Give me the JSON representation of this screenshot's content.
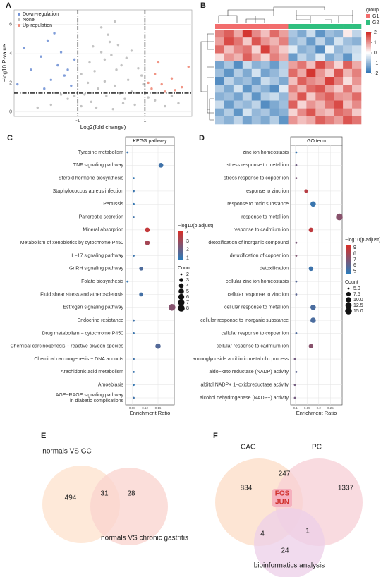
{
  "chart_data": [
    {
      "type": "scatter",
      "panel": "A",
      "xlabel": "Log2(fold change)",
      "ylabel": "−log10 P-value",
      "xlim": [
        -2.9,
        2.4
      ],
      "ylim": [
        -0.3,
        7
      ],
      "xticks": [
        -1,
        1
      ],
      "yticks": [
        0,
        2,
        4,
        6
      ],
      "vlines": [
        -1,
        1
      ],
      "hline": 1.3,
      "grid": true,
      "legend": "top-left",
      "series": [
        {
          "name": "Down-regulation",
          "color": "#7393d6",
          "x": [
            -2.6,
            -2.1,
            -1.9,
            -1.6,
            -1.4,
            -2.4,
            -1.2,
            -1.8,
            -1.1,
            -2.8,
            -1.5,
            -1.3,
            -2.0,
            -1.7
          ],
          "y": [
            4.4,
            3.8,
            4.9,
            3.2,
            2.5,
            2.9,
            1.8,
            2.2,
            3.6,
            1.9,
            4.1,
            2.9,
            1.6,
            5.4
          ]
        },
        {
          "name": "None",
          "color": "#bdbdbd",
          "x": [
            -0.2,
            0.1,
            0.3,
            -0.5,
            0.6,
            -0.8,
            0.9,
            -0.3,
            0.2,
            -0.1,
            0.4,
            -0.6,
            0.7,
            -0.9,
            0.05,
            -0.4,
            0.5,
            -0.7,
            0.8,
            -0.2,
            0.15,
            -0.45,
            0.35,
            -0.15,
            0.25,
            1.3,
            -1.3,
            1.6,
            -1.8,
            1.1,
            -1.1,
            -2.2,
            2.0,
            0.0,
            -0.05,
            0.45,
            -0.65,
            0.6,
            -0.3,
            0.1,
            -0.9,
            0.95,
            -1.5,
            1.8,
            -0.55
          ],
          "y": [
            2.1,
            1.8,
            3.2,
            2.8,
            1.4,
            1.2,
            2.5,
            4.1,
            4.6,
            5.3,
            0.9,
            0.7,
            0.5,
            0.4,
            0.2,
            1.6,
            2.2,
            2.0,
            3.0,
            3.6,
            2.9,
            0.3,
            0.6,
            1.1,
            1.3,
            0.8,
            0.9,
            0.4,
            0.5,
            1.0,
            1.1,
            0.3,
            0.6,
            3.9,
            4.8,
            3.7,
            3.4,
            4.2,
            5.8,
            6.2,
            2.6,
            1.9,
            1.2,
            1.1,
            4.5
          ]
        },
        {
          "name": "Up-regulation",
          "color": "#f08a78",
          "x": [
            1.2,
            1.5,
            1.8,
            2.1,
            1.3,
            2.3,
            1.6,
            1.1,
            1.9,
            1.4
          ],
          "y": [
            1.6,
            1.9,
            2.3,
            1.7,
            2.6,
            3.1,
            1.4,
            2.0,
            1.5,
            3.4
          ]
        }
      ]
    },
    {
      "type": "heatmap",
      "panel": "B",
      "legend_title": "group",
      "groups": [
        {
          "name": "G1",
          "color": "#f26d6d"
        },
        {
          "name": "G2",
          "color": "#2fbf7f"
        }
      ],
      "column_groups": [
        0,
        0,
        0,
        0,
        0,
        0,
        0,
        0,
        1,
        1,
        1,
        1,
        1,
        1,
        1,
        1
      ],
      "clim": [
        -2,
        2
      ],
      "cticks": [
        2,
        1,
        0,
        -1,
        -2
      ],
      "color_low": "#2a71b3",
      "color_mid": "#ffffff",
      "color_high": "#d22b26",
      "values": [
        [
          1.2,
          1.5,
          0.8,
          1.9,
          1.1,
          0.6,
          1.4,
          0.9,
          -0.8,
          -1.2,
          -0.5,
          -1.5,
          -0.9,
          -1.1,
          0.2,
          -0.6
        ],
        [
          0.9,
          1.7,
          1.3,
          0.5,
          1.6,
          1.0,
          0.7,
          1.2,
          -1.0,
          -0.7,
          -1.4,
          -0.6,
          -1.3,
          -0.4,
          -0.9,
          -1.1
        ],
        [
          1.4,
          0.6,
          1.1,
          1.3,
          0.4,
          1.8,
          1.0,
          0.5,
          -0.3,
          -1.1,
          -0.9,
          -1.6,
          -0.2,
          -1.0,
          -0.7,
          -0.5
        ],
        [
          0.3,
          1.0,
          0.7,
          1.5,
          0.9,
          0.4,
          1.2,
          0.8,
          -1.4,
          -0.6,
          -1.0,
          -0.3,
          -1.2,
          -0.8,
          -1.5,
          -0.4
        ],
        [
          -1.3,
          -0.8,
          -1.6,
          -0.5,
          -1.1,
          -0.9,
          -1.4,
          -0.7,
          0.9,
          1.3,
          0.6,
          1.7,
          1.1,
          0.4,
          1.5,
          0.8
        ],
        [
          -0.9,
          -1.5,
          -0.7,
          -1.2,
          -0.4,
          -1.3,
          -1.0,
          -0.6,
          1.4,
          0.8,
          1.9,
          1.0,
          0.5,
          1.6,
          0.7,
          1.2
        ],
        [
          -1.6,
          -0.6,
          -1.1,
          -0.9,
          -1.4,
          -0.5,
          -0.8,
          -1.2,
          0.6,
          1.5,
          1.1,
          0.9,
          1.8,
          1.2,
          0.3,
          1.0
        ],
        [
          -0.7,
          -1.2,
          -0.4,
          -1.5,
          -0.8,
          -1.1,
          -1.6,
          -0.3,
          1.2,
          0.7,
          1.4,
          1.6,
          0.9,
          0.5,
          1.3,
          0.6
        ],
        [
          -1.1,
          -0.9,
          -1.3,
          -0.6,
          -1.5,
          -0.7,
          -0.5,
          -1.0,
          0.8,
          1.6,
          0.5,
          1.2,
          1.5,
          1.0,
          0.9,
          1.4
        ],
        [
          -0.5,
          -1.4,
          -0.8,
          -1.0,
          -0.6,
          -1.6,
          -1.2,
          -0.9,
          1.5,
          0.4,
          1.0,
          0.7,
          1.3,
          1.7,
          0.6,
          1.1
        ],
        [
          -1.2,
          -0.7,
          -1.5,
          -0.4,
          -1.0,
          -0.8,
          -1.3,
          -1.1,
          0.4,
          1.1,
          1.6,
          0.8,
          0.6,
          1.4,
          1.2,
          0.5
        ],
        [
          -0.8,
          -1.1,
          -0.6,
          -1.3,
          -0.9,
          -1.2,
          -0.7,
          -1.5,
          1.0,
          0.6,
          0.8,
          1.5,
          1.2,
          0.9,
          1.6,
          1.3
        ]
      ]
    },
    {
      "type": "dot",
      "panel": "C",
      "title": "KEGG pathway",
      "xlabel": "Enrichment Ratio",
      "xlim": [
        0.06,
        0.21
      ],
      "xticks": [
        0.08,
        0.12,
        0.16
      ],
      "grid": true,
      "categories": [
        "Tyrosine metabolism",
        "TNF signaling pathway",
        "Steroid hormone biosynthesis",
        "Staphylococcus aureus infection",
        "Pertussis",
        "Pancreatic secretion",
        "Mineral absorption",
        "Metabolism of xenobiotics by cytochrome P450",
        "IL−17 signaling pathway",
        "GnRH signaling pathway",
        "Folate biosynthesis",
        "Fluid shear stress and atherosclerosis",
        "Estrogen signaling pathway",
        "Endocrine resistance",
        "Drug metabolism − cytochrome P450",
        "Chemical carcinogenesis − reactive oxygen species",
        "Chemical carcinogenesis − DNA adducts",
        "Arachidonic acid metabolism",
        "Amoebiasis",
        "AGE−RAGE signaling pathway\nin diabetic complications"
      ],
      "values": [
        0.066,
        0.169,
        0.085,
        0.085,
        0.085,
        0.085,
        0.127,
        0.127,
        0.085,
        0.108,
        0.066,
        0.108,
        0.203,
        0.085,
        0.085,
        0.16,
        0.085,
        0.085,
        0.085,
        0.085
      ],
      "counts": [
        2,
        4,
        2,
        2,
        2,
        2,
        4,
        4,
        2,
        3,
        2,
        3,
        8,
        2,
        2,
        5,
        2,
        2,
        2,
        2
      ],
      "color_values": [
        1.1,
        1.2,
        1.0,
        1.1,
        1.0,
        1.2,
        3.8,
        3.2,
        1.1,
        1.5,
        1.0,
        1.3,
        2.6,
        1.2,
        1.1,
        1.6,
        1.2,
        1.1,
        1.0,
        1.2
      ],
      "color_title": "−log10(p.adjust)",
      "clim": [
        0.8,
        4.2
      ],
      "cticks": [
        4,
        3,
        2,
        1
      ],
      "color_low": "#2b7bba",
      "color_high": "#d7302a",
      "size_title": "Count",
      "size_ticks": [
        2,
        3,
        4,
        5,
        6,
        7,
        8
      ]
    },
    {
      "type": "dot",
      "panel": "D",
      "title": "GO term",
      "xlabel": "Enrichment Ratio",
      "xlim": [
        0.08,
        0.3
      ],
      "xticks": [
        0.1,
        0.15,
        0.2,
        0.25
      ],
      "grid": true,
      "categories": [
        "zinc ion homeostasis",
        "stress response to metal ion",
        "stress response to copper ion",
        "response to zinc ion",
        "response to toxic substance",
        "response to metal ion",
        "response to cadmium ion",
        "detoxification of inorganic compound",
        "detoxification of copper ion",
        "detoxification",
        "cellular zinc ion homeostasis",
        "cellular response to zinc ion",
        "cellular response to metal ion",
        "cellular response to inorganic substance",
        "cellular response to copper ion",
        "cellular response to cadmium ion",
        "aminoglycoside antibiotic metabolic process",
        "aldo−keto reductase (NADP) activity",
        "alditol:NADP+ 1−oxidoreductase activity",
        "alcohol dehydrogenase (NADP+) activity"
      ],
      "values": [
        0.104,
        0.104,
        0.104,
        0.146,
        0.176,
        0.288,
        0.167,
        0.104,
        0.104,
        0.167,
        0.104,
        0.104,
        0.176,
        0.176,
        0.104,
        0.167,
        0.098,
        0.104,
        0.098,
        0.098
      ],
      "counts": [
        5,
        5,
        5,
        6,
        10,
        15,
        8,
        5,
        5,
        8,
        5,
        5,
        10,
        10,
        5,
        8,
        5,
        5,
        5,
        5
      ],
      "color_values": [
        5.0,
        6.5,
        6.8,
        8.5,
        5.0,
        7.2,
        8.7,
        6.8,
        7.0,
        5.1,
        5.8,
        6.0,
        5.5,
        5.5,
        5.6,
        7.2,
        6.6,
        6.0,
        6.6,
        6.6
      ],
      "color_title": "−log10(p.adjust)",
      "clim": [
        4.6,
        9.4
      ],
      "cticks": [
        9,
        8,
        7,
        6,
        5
      ],
      "color_low": "#2b7bba",
      "color_high": "#d7302a",
      "size_title": "Count",
      "size_ticks": [
        {
          "value": 5,
          "label": "5.0"
        },
        {
          "value": 7.5,
          "label": "7.5"
        },
        {
          "value": 10,
          "label": "10.0"
        },
        {
          "value": 12.5,
          "label": "12.5"
        },
        {
          "value": 15,
          "label": "15.0"
        }
      ]
    },
    {
      "type": "venn",
      "panel": "E",
      "sets": [
        {
          "name": "normals VS GC",
          "color": "#fde1cc"
        },
        {
          "name": "normals VS chronic gastritis",
          "color": "#f9d3cd"
        }
      ],
      "values": [
        494,
        31,
        28
      ]
    },
    {
      "type": "venn",
      "panel": "F",
      "sets": [
        {
          "name": "CAG",
          "color": "#fcdcc6"
        },
        {
          "name": "PC",
          "color": "#f7cfd6"
        },
        {
          "name": "bioinformatics analysis",
          "color": "#eccfe8"
        }
      ],
      "values": [
        834,
        247,
        1337,
        4,
        1,
        24
      ],
      "center_genes": [
        "FOS",
        "JUN"
      ]
    }
  ]
}
